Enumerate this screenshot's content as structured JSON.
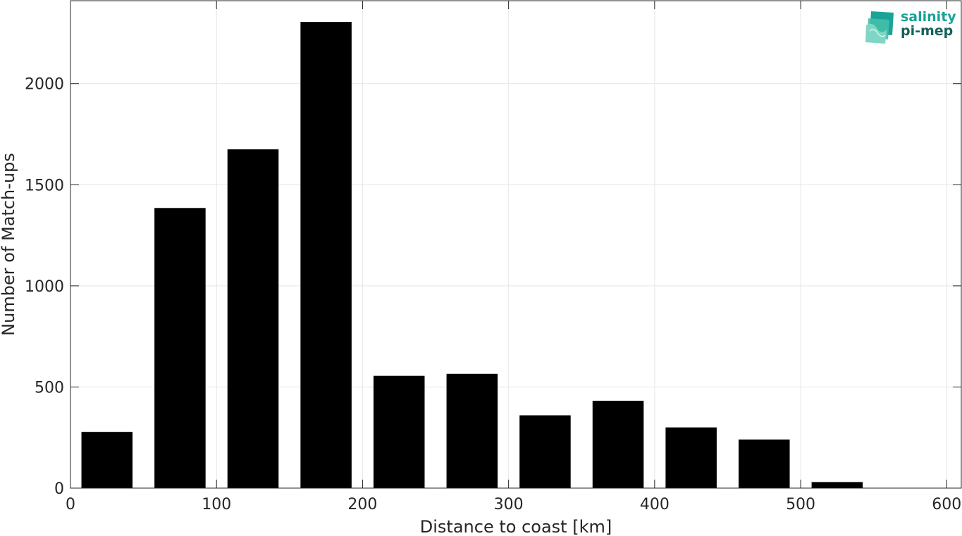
{
  "chart_data": {
    "type": "bar",
    "title": "",
    "xlabel": "Distance to coast [km]",
    "ylabel": "Number of Match-ups",
    "x": [
      25,
      75,
      125,
      175,
      225,
      275,
      325,
      375,
      425,
      475,
      525,
      575
    ],
    "values": [
      278,
      1385,
      1675,
      2305,
      555,
      565,
      360,
      432,
      300,
      240,
      30,
      0
    ],
    "bar_width_km": 35,
    "xlim": [
      0,
      610
    ],
    "ylim": [
      0,
      2410
    ],
    "xticks": [
      0,
      100,
      200,
      300,
      400,
      500,
      600
    ],
    "xtick_labels": [
      "0",
      "100",
      "200",
      "300",
      "400",
      "500",
      "600"
    ],
    "yticks": [
      0,
      500,
      1000,
      1500,
      2000
    ],
    "ytick_labels": [
      "0",
      "500",
      "1000",
      "1500",
      "2000"
    ],
    "grid": true,
    "bar_color": "#000000",
    "grid_color": "#e6e6e6",
    "axis_color": "#262626"
  },
  "logo": {
    "line1": "salinity",
    "line2": "pi-mep",
    "colors": [
      "#1aa396",
      "#17615c",
      "#7fd6c4"
    ]
  }
}
